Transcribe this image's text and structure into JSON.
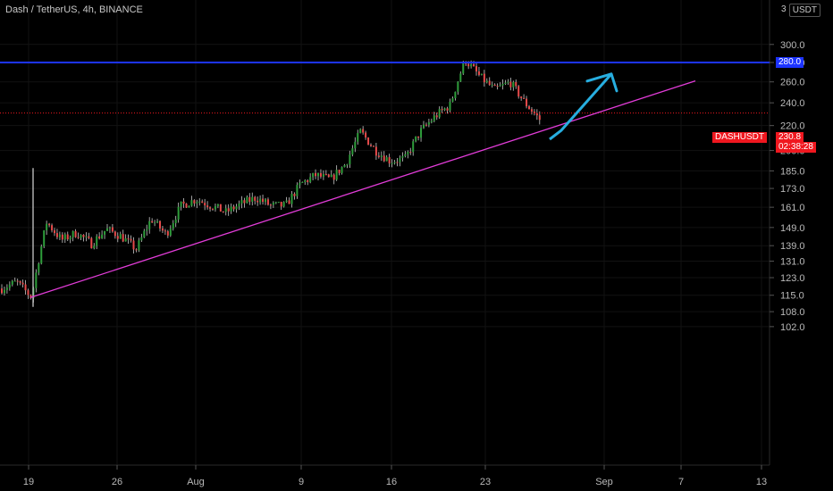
{
  "header": {
    "title": "Dash / TetherUS, 4h, BINANCE",
    "currency_prefix": "3",
    "currency": "USDT"
  },
  "labels": {
    "resistance": "280.0",
    "symbol": "DASHUSDT",
    "last_price": "230.8",
    "countdown": "02:38:28"
  },
  "colors": {
    "background": "#000000",
    "up": "#2e9d3b",
    "down": "#e64a4a",
    "resistance_line": "#1c33ff",
    "trendline": "#e23cd8",
    "projection": "#27aee0",
    "price_line": "#f0171f"
  },
  "chart_data": {
    "type": "candlestick",
    "timeframe": "4h",
    "scale": "log",
    "y_ticks": [
      "300.0",
      "280.0",
      "260.0",
      "240.0",
      "220.0",
      "200.0",
      "185.0",
      "173.0",
      "161.0",
      "149.0",
      "139.0",
      "131.0",
      "123.0",
      "115.0",
      "108.0",
      "102.0"
    ],
    "x_ticks": [
      "19",
      "26",
      "Aug",
      "9",
      "16",
      "23",
      "Sep",
      "7",
      "13"
    ],
    "resistance": 280.0,
    "last_price": 230.8,
    "trendline": [
      [
        "19",
        114
      ],
      [
        "13",
        261
      ]
    ],
    "projection": [
      [
        "23",
        216
      ],
      [
        "Sep",
        268
      ]
    ],
    "price_path": [
      [
        "19",
        118
      ],
      [
        "19",
        121
      ],
      [
        "19",
        114
      ],
      [
        "19",
        152
      ],
      [
        "19",
        142
      ],
      [
        "26",
        146
      ],
      [
        "26",
        140
      ],
      [
        "26",
        148
      ],
      [
        "26",
        144
      ],
      [
        "26",
        137
      ],
      [
        "26",
        154
      ],
      [
        "26",
        145
      ],
      [
        "Aug",
        162
      ],
      [
        "Aug",
        166
      ],
      [
        "Aug",
        162
      ],
      [
        "Aug",
        158
      ],
      [
        "Aug",
        163
      ],
      [
        "9",
        167
      ],
      [
        "9",
        162
      ],
      [
        "9",
        162
      ],
      [
        "9",
        176
      ],
      [
        "9",
        182
      ],
      [
        "9",
        179
      ],
      [
        "16",
        190
      ],
      [
        "16",
        215
      ],
      [
        "16",
        200
      ],
      [
        "16",
        192
      ],
      [
        "16",
        194
      ],
      [
        "16",
        215
      ],
      [
        "23",
        228
      ],
      [
        "23",
        238
      ],
      [
        "23",
        283
      ],
      [
        "23",
        265
      ],
      [
        "23",
        252
      ],
      [
        "23",
        260
      ],
      [
        "23",
        240
      ],
      [
        "23",
        225
      ]
    ]
  }
}
